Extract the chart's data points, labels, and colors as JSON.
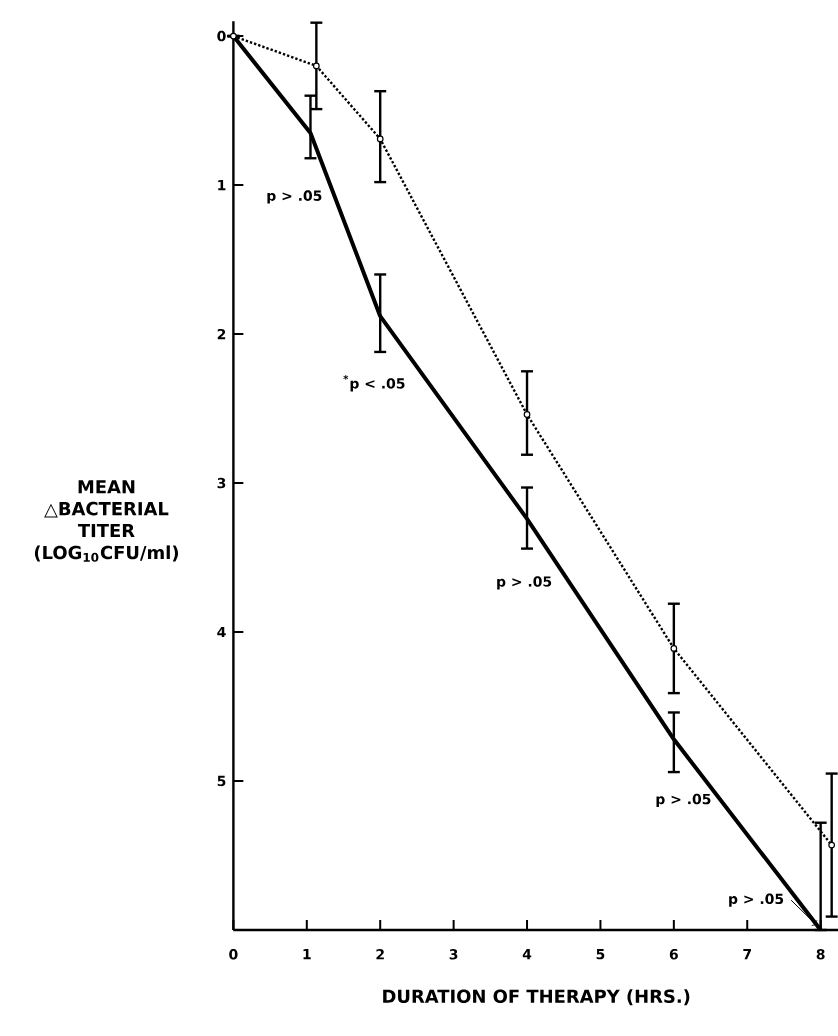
{
  "chart_data": {
    "type": "line",
    "xlabel": "DURATION OF THERAPY (HRS.)",
    "ylabel": "MEAN △BACTERIAL TITER (LOG$_{10}$CFU/ml)",
    "xlim": [
      0,
      8.25
    ],
    "ylim": [
      6,
      -0.1
    ],
    "xticks": [
      0,
      1,
      2,
      3,
      4,
      5,
      6,
      7,
      8
    ],
    "yticks": [
      0,
      1,
      2,
      3,
      4,
      5,
      {
        "value": 6,
        "label": null
      }
    ],
    "grid": false,
    "series": [
      {
        "color": "#000000",
        "line_style": "solid",
        "marker": "none",
        "x": [
          0,
          1.05,
          2,
          4,
          6,
          8
        ],
        "values": [
          0,
          0.65,
          1.88,
          3.24,
          4.72,
          6.0
        ],
        "errors": [
          null,
          [
            0.4,
            0.82
          ],
          [
            1.6,
            2.12
          ],
          [
            3.03,
            3.44
          ],
          [
            4.54,
            4.94
          ],
          [
            5.28,
            6.0
          ]
        ]
      },
      {
        "color": "#000000",
        "line_style": "dotted",
        "marker": "circle",
        "x": [
          0,
          1.13,
          2,
          4,
          6,
          8.15
        ],
        "values": [
          0,
          0.2,
          0.69,
          2.54,
          4.11,
          5.43
        ],
        "errors": [
          null,
          [
            -0.09,
            0.49
          ],
          [
            0.37,
            0.98
          ],
          [
            2.25,
            2.81
          ],
          [
            3.81,
            4.41
          ],
          [
            4.95,
            5.91
          ]
        ]
      }
    ],
    "annotations": [
      "p > .05",
      "$^{*}$p < .05",
      "p > .05",
      "p > .05",
      "p > .05"
    ]
  }
}
